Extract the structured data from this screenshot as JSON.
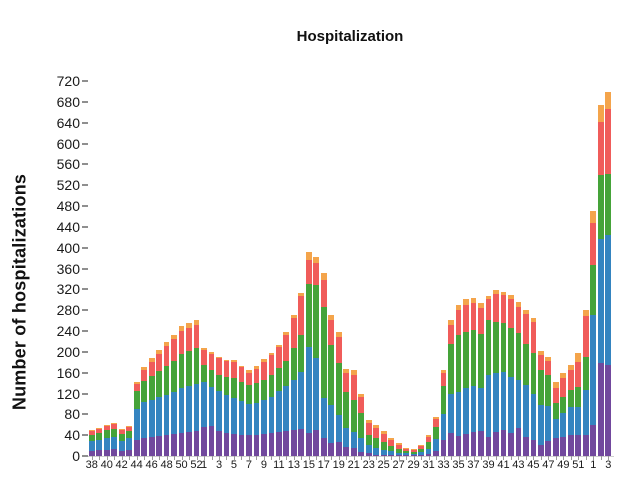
{
  "title": "Hospitalization",
  "y_axis": {
    "label": "Number of hospitalizations",
    "ticks": [
      0,
      40,
      80,
      120,
      160,
      200,
      240,
      280,
      320,
      360,
      400,
      440,
      480,
      520,
      560,
      600,
      640,
      680,
      720
    ]
  },
  "x_axis": {
    "shown_tick_labels": [
      38,
      40,
      42,
      44,
      46,
      48,
      50,
      52,
      1,
      3,
      5,
      7,
      9,
      11,
      13,
      15,
      17,
      19,
      21,
      23,
      25,
      27,
      29,
      31,
      33,
      35,
      37,
      39,
      41,
      43,
      45,
      47,
      49,
      51,
      1,
      3
    ]
  },
  "chart_data": {
    "type": "bar",
    "stacked": true,
    "title": "Hospitalization",
    "xlabel": "",
    "ylabel": "Number of hospitalizations",
    "ylim": [
      0,
      730
    ],
    "y_ticks": [
      0,
      40,
      80,
      120,
      160,
      200,
      240,
      280,
      320,
      360,
      400,
      440,
      480,
      520,
      560,
      600,
      640,
      680,
      720
    ],
    "grid": false,
    "legend": "none",
    "categories": [
      38,
      39,
      40,
      41,
      42,
      43,
      44,
      45,
      46,
      47,
      48,
      49,
      50,
      51,
      52,
      1,
      2,
      3,
      4,
      5,
      6,
      7,
      8,
      9,
      10,
      11,
      12,
      13,
      14,
      15,
      16,
      17,
      18,
      19,
      20,
      21,
      22,
      23,
      24,
      25,
      26,
      27,
      28,
      29,
      30,
      31,
      32,
      33,
      34,
      35,
      36,
      37,
      38,
      39,
      40,
      41,
      42,
      43,
      44,
      45,
      46,
      47,
      48,
      49,
      50,
      51,
      52,
      1,
      2,
      3
    ],
    "series": [
      {
        "name": "segment-purple",
        "color": "#71489D",
        "values": [
          10,
          11,
          12,
          13,
          10,
          12,
          30,
          34,
          36,
          38,
          40,
          42,
          45,
          46,
          48,
          56,
          58,
          48,
          44,
          43,
          41,
          40,
          41,
          42,
          45,
          46,
          48,
          49,
          51,
          44,
          50,
          34,
          24,
          27,
          18,
          15,
          8,
          5,
          2,
          1,
          2,
          1,
          1,
          1,
          2,
          4,
          10,
          30,
          44,
          38,
          42,
          47,
          48,
          37,
          47,
          50,
          44,
          53,
          37,
          31,
          21,
          28,
          34,
          37,
          40,
          40,
          40,
          60,
          178,
          175
        ]
      },
      {
        "name": "segment-blue",
        "color": "#3484C0",
        "values": [
          18,
          20,
          22,
          23,
          19,
          22,
          60,
          70,
          72,
          75,
          78,
          80,
          85,
          88,
          90,
          87,
          75,
          76,
          73,
          68,
          64,
          59,
          61,
          66,
          69,
          78,
          86,
          97,
          111,
          166,
          138,
          77,
          74,
          52,
          35,
          32,
          26,
          16,
          13,
          11,
          8,
          5,
          4,
          3,
          5,
          10,
          22,
          50,
          76,
          85,
          89,
          87,
          83,
          118,
          112,
          112,
          108,
          93,
          99,
          89,
          77,
          68,
          38,
          45,
          55,
          55,
          86,
          210,
          238,
          249
        ]
      },
      {
        "name": "segment-green",
        "color": "#45A339",
        "values": [
          13,
          13,
          15,
          16,
          13,
          14,
          34,
          40,
          45,
          50,
          55,
          60,
          65,
          68,
          70,
          32,
          32,
          32,
          35,
          39,
          38,
          38,
          38,
          38,
          42,
          45,
          48,
          61,
          70,
          121,
          140,
          176,
          115,
          99,
          70,
          60,
          48,
          19,
          19,
          15,
          10,
          8,
          5,
          4,
          7,
          12,
          24,
          55,
          96,
          109,
          108,
          108,
          104,
          106,
          99,
          93,
          93,
          90,
          80,
          77,
          67,
          60,
          29,
          32,
          32,
          38,
          64,
          96,
          124,
          117
        ]
      },
      {
        "name": "segment-red",
        "color": "#F05C5A",
        "values": [
          7,
          8,
          9,
          9,
          8,
          8,
          15,
          22,
          28,
          32,
          38,
          42,
          45,
          44,
          44,
          28,
          31,
          32,
          30,
          31,
          27,
          23,
          27,
          35,
          38,
          41,
          51,
          58,
          76,
          45,
          42,
          52,
          48,
          51,
          36,
          48,
          31,
          23,
          19,
          16,
          11,
          8,
          4,
          4,
          6,
          11,
          15,
          25,
          36,
          48,
          51,
          52,
          50,
          41,
          54,
          54,
          57,
          50,
          57,
          61,
          29,
          26,
          29,
          35,
          38,
          48,
          78,
          82,
          102,
          126
        ]
      },
      {
        "name": "segment-orange",
        "color": "#F4A44B",
        "values": [
          2,
          2,
          2,
          3,
          2,
          2,
          4,
          5,
          7,
          8,
          8,
          9,
          10,
          10,
          10,
          4,
          4,
          3,
          3,
          4,
          3,
          6,
          5,
          6,
          4,
          3,
          5,
          5,
          6,
          16,
          13,
          12,
          10,
          10,
          9,
          10,
          7,
          6,
          6,
          5,
          4,
          3,
          2,
          1,
          2,
          3,
          4,
          5,
          10,
          10,
          12,
          9,
          9,
          6,
          6,
          7,
          8,
          10,
          8,
          7,
          8,
          8,
          13,
          10,
          10,
          17,
          12,
          22,
          33,
          33
        ]
      }
    ]
  }
}
